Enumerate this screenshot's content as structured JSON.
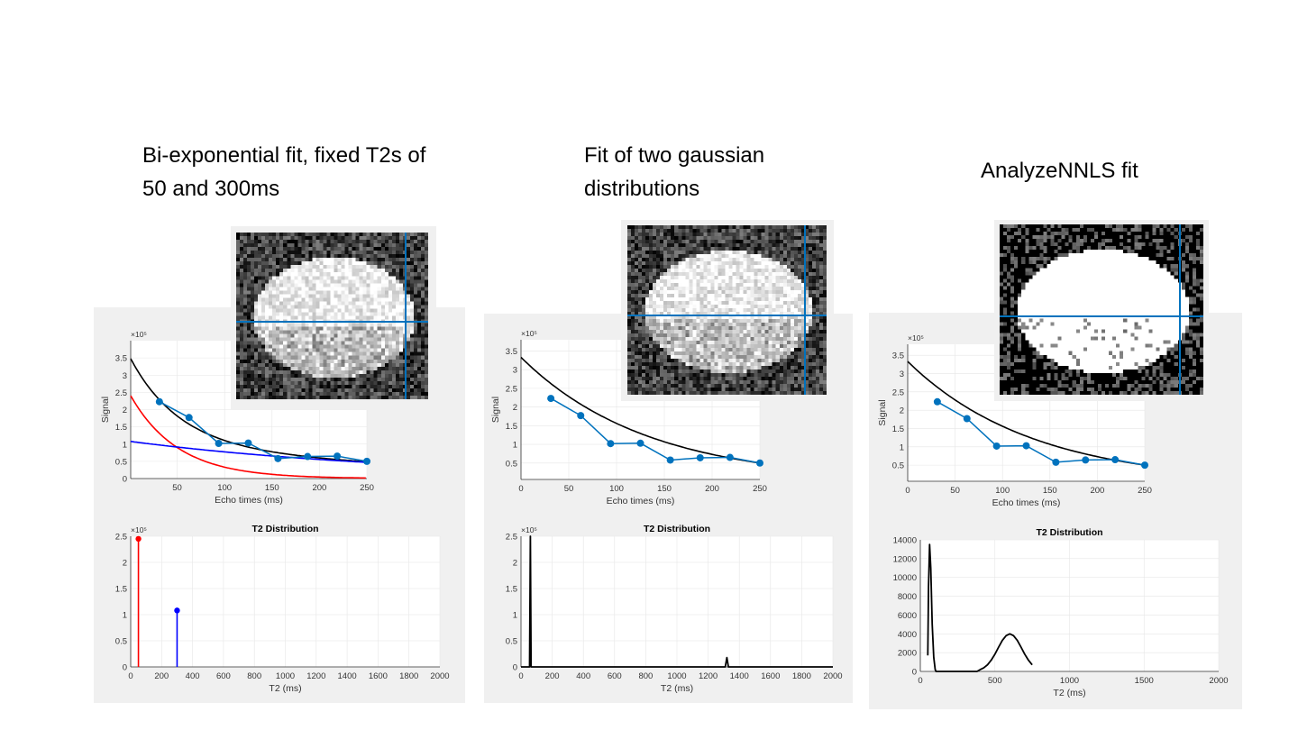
{
  "slide": {
    "titles": [
      {
        "line1": "Bi-exponential fit, fixed T2s of",
        "line2": "50 and 300ms"
      },
      {
        "line1": "Fit of two gaussian",
        "line2": "distributions"
      },
      {
        "line1": "AnalyzeNNLS fit",
        "line2": ""
      }
    ]
  },
  "colors": {
    "panel_bg": "#f0f0f0",
    "data_series": "#0072bd",
    "fit": "#000000",
    "short_component": "#ff0000",
    "long_component": "#0000ff",
    "crosshair": "#0072bd"
  },
  "chart_data": [
    {
      "panel": 1,
      "type": "line",
      "title": "",
      "xlabel": "Echo times (ms)",
      "ylabel": "Signal",
      "y_exponent": "×10⁵",
      "xlim": [
        1,
        250
      ],
      "ylim": [
        0,
        4
      ],
      "grid": true,
      "xticks": [
        50,
        100,
        150,
        200,
        250
      ],
      "yticks": [
        0,
        0.5,
        1,
        1.5,
        2,
        2.5,
        3,
        3.5
      ],
      "measured": {
        "x": [
          31.25,
          62.5,
          93.75,
          125,
          156.25,
          187.5,
          218.75,
          250
        ],
        "y": [
          2.23,
          1.77,
          1.02,
          1.03,
          0.58,
          0.64,
          0.65,
          0.5
        ]
      },
      "fits": [
        {
          "role": "total",
          "amplitudes": [
            2.45,
            1.08
          ],
          "t2": [
            50,
            300
          ],
          "color": "#000000"
        },
        {
          "role": "short",
          "amplitudes": [
            2.45
          ],
          "t2": [
            50
          ],
          "color": "#ff0000"
        },
        {
          "role": "long",
          "amplitudes": [
            1.08
          ],
          "t2": [
            300
          ],
          "color": "#0000ff"
        }
      ]
    },
    {
      "panel": 1,
      "type": "stem",
      "title": "T2 Distribution",
      "xlabel": "T2 (ms)",
      "ylabel": "",
      "y_exponent": "×10⁵",
      "xlim": [
        0,
        2000
      ],
      "ylim": [
        0,
        2.5
      ],
      "grid": true,
      "xticks": [
        0,
        200,
        400,
        600,
        800,
        1000,
        1200,
        1400,
        1600,
        1800,
        2000
      ],
      "yticks": [
        0,
        0.5,
        1,
        1.5,
        2,
        2.5
      ],
      "stems": [
        {
          "x": 50,
          "y": 2.45,
          "color": "#ff0000"
        },
        {
          "x": 300,
          "y": 1.08,
          "color": "#0000ff"
        }
      ]
    },
    {
      "panel": 2,
      "type": "line",
      "title": "",
      "xlabel": "Echo times (ms)",
      "ylabel": "Signal",
      "y_exponent": "×10⁵",
      "xlim": [
        0,
        250
      ],
      "ylim": [
        0.06,
        3.8
      ],
      "grid": true,
      "xticks": [
        0,
        50,
        100,
        150,
        200,
        250
      ],
      "yticks": [
        0.5,
        1,
        1.5,
        2,
        2.5,
        3,
        3.5
      ],
      "measured": {
        "x": [
          31.25,
          62.5,
          93.75,
          125,
          156.25,
          187.5,
          218.75,
          250
        ],
        "y": [
          2.23,
          1.77,
          1.02,
          1.03,
          0.58,
          0.64,
          0.65,
          0.5
        ]
      },
      "fits": [
        {
          "role": "total",
          "amplitudes": [
            3.33
          ],
          "t2": [
            132
          ],
          "color": "#000000"
        }
      ]
    },
    {
      "panel": 2,
      "type": "line",
      "title": "T2 Distribution",
      "xlabel": "T2 (ms)",
      "ylabel": "",
      "y_exponent": "×10⁵",
      "xlim": [
        0,
        2000
      ],
      "ylim": [
        0,
        2.5
      ],
      "grid": true,
      "xticks": [
        0,
        200,
        400,
        600,
        800,
        1000,
        1200,
        1400,
        1600,
        1800,
        2000
      ],
      "yticks": [
        0,
        0.5,
        1,
        1.5,
        2,
        2.5
      ],
      "curve": {
        "x": [
          0,
          55,
          60,
          65,
          1310,
          1320,
          1330,
          2000
        ],
        "y": [
          0,
          0,
          2.5,
          0,
          0,
          0.18,
          0,
          0
        ]
      }
    },
    {
      "panel": 3,
      "type": "line",
      "title": "",
      "xlabel": "Echo times (ms)",
      "ylabel": "Signal",
      "y_exponent": "×10⁵",
      "xlim": [
        0,
        250
      ],
      "ylim": [
        0.06,
        3.8
      ],
      "grid": true,
      "xticks": [
        0,
        50,
        100,
        150,
        200,
        250
      ],
      "yticks": [
        0.5,
        1,
        1.5,
        2,
        2.5,
        3,
        3.5
      ],
      "measured": {
        "x": [
          31.25,
          62.5,
          93.75,
          125,
          156.25,
          187.5,
          218.75,
          250
        ],
        "y": [
          2.23,
          1.77,
          1.02,
          1.03,
          0.58,
          0.64,
          0.65,
          0.5
        ]
      },
      "fits": [
        {
          "role": "total",
          "amplitudes": [
            3.33
          ],
          "t2": [
            132
          ],
          "color": "#000000"
        }
      ]
    },
    {
      "panel": 3,
      "type": "line",
      "title": "T2 Distribution",
      "xlabel": "T2 (ms)",
      "ylabel": "",
      "y_exponent": "",
      "xlim": [
        0,
        2000
      ],
      "ylim": [
        0,
        14000
      ],
      "grid": true,
      "xticks": [
        0,
        500,
        1000,
        1500,
        2000
      ],
      "yticks": [
        0,
        2000,
        4000,
        6000,
        8000,
        10000,
        12000,
        14000
      ],
      "curve": {
        "x": [
          50,
          55,
          62,
          70,
          80,
          90,
          100,
          105,
          380,
          400,
          425,
          450,
          475,
          500,
          525,
          550,
          575,
          600,
          625,
          650,
          675,
          700,
          725,
          750
        ],
        "y": [
          1700,
          9000,
          13500,
          11000,
          5000,
          1500,
          200,
          0,
          0,
          180,
          373,
          699,
          1192,
          1842,
          2587,
          3295,
          3811,
          4000,
          3811,
          3295,
          2587,
          1842,
          1192,
          699
        ]
      }
    }
  ]
}
